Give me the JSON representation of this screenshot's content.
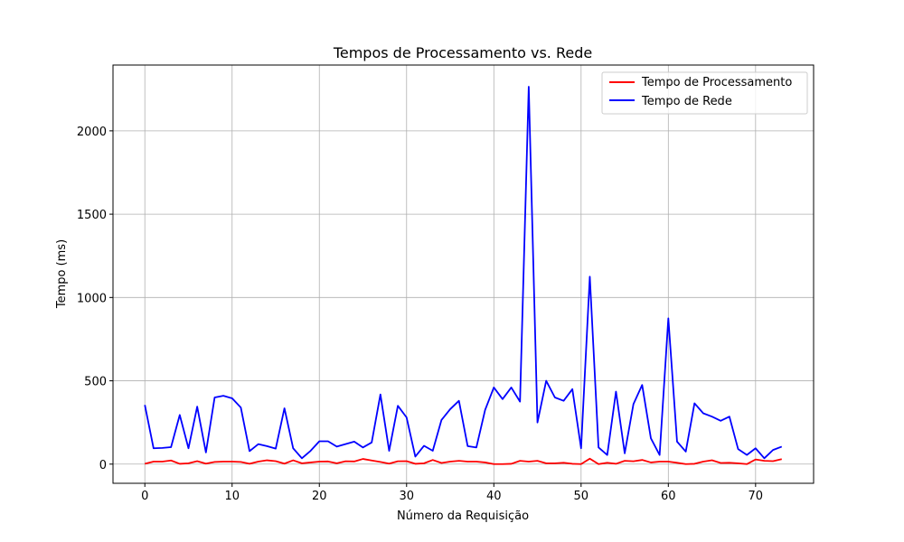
{
  "chart_data": {
    "type": "line",
    "title": "Tempos de Processamento vs. Rede",
    "xlabel": "Número da Requisição",
    "ylabel": "Tempo (ms)",
    "xlim": [
      -3.65,
      76.65
    ],
    "ylim": [
      -115,
      2395
    ],
    "xticks": [
      0,
      10,
      20,
      30,
      40,
      50,
      60,
      70
    ],
    "yticks": [
      0,
      500,
      1000,
      1500,
      2000
    ],
    "grid": true,
    "legend_position": "top-right",
    "x": [
      0,
      1,
      2,
      3,
      4,
      5,
      6,
      7,
      8,
      9,
      10,
      11,
      12,
      13,
      14,
      15,
      16,
      17,
      18,
      19,
      20,
      21,
      22,
      23,
      24,
      25,
      26,
      27,
      28,
      29,
      30,
      31,
      32,
      33,
      34,
      35,
      36,
      37,
      38,
      39,
      40,
      41,
      42,
      43,
      44,
      45,
      46,
      47,
      48,
      49,
      50,
      51,
      52,
      53,
      54,
      55,
      56,
      57,
      58,
      59,
      60,
      61,
      62,
      63,
      64,
      65,
      66,
      67,
      68,
      69,
      70,
      71,
      72,
      73
    ],
    "series": [
      {
        "name": "Tempo de Processamento",
        "color": "#ff0000",
        "values": [
          2,
          15,
          15,
          22,
          2,
          5,
          18,
          3,
          13,
          15,
          15,
          13,
          2,
          15,
          23,
          18,
          3,
          23,
          5,
          10,
          15,
          16,
          5,
          17,
          16,
          31,
          22,
          13,
          3,
          17,
          18,
          2,
          5,
          25,
          7,
          15,
          20,
          15,
          15,
          10,
          0,
          0,
          2,
          20,
          15,
          20,
          5,
          5,
          8,
          2,
          0,
          33,
          0,
          8,
          2,
          20,
          17,
          25,
          10,
          15,
          15,
          8,
          0,
          2,
          15,
          23,
          7,
          8,
          5,
          0,
          28,
          20,
          18,
          30
        ]
      },
      {
        "name": "Tempo de Rede",
        "color": "#0000ff",
        "values": [
          355,
          95,
          97,
          102,
          295,
          95,
          345,
          70,
          400,
          410,
          395,
          340,
          78,
          120,
          108,
          93,
          335,
          95,
          35,
          80,
          137,
          137,
          105,
          120,
          135,
          100,
          130,
          418,
          80,
          350,
          280,
          45,
          110,
          80,
          265,
          330,
          380,
          108,
          100,
          325,
          460,
          390,
          460,
          375,
          2265,
          250,
          500,
          400,
          380,
          450,
          95,
          1125,
          100,
          55,
          435,
          65,
          360,
          475,
          155,
          55,
          875,
          135,
          75,
          365,
          305,
          285,
          260,
          285,
          90,
          55,
          95,
          35,
          85,
          105
        ]
      }
    ]
  }
}
